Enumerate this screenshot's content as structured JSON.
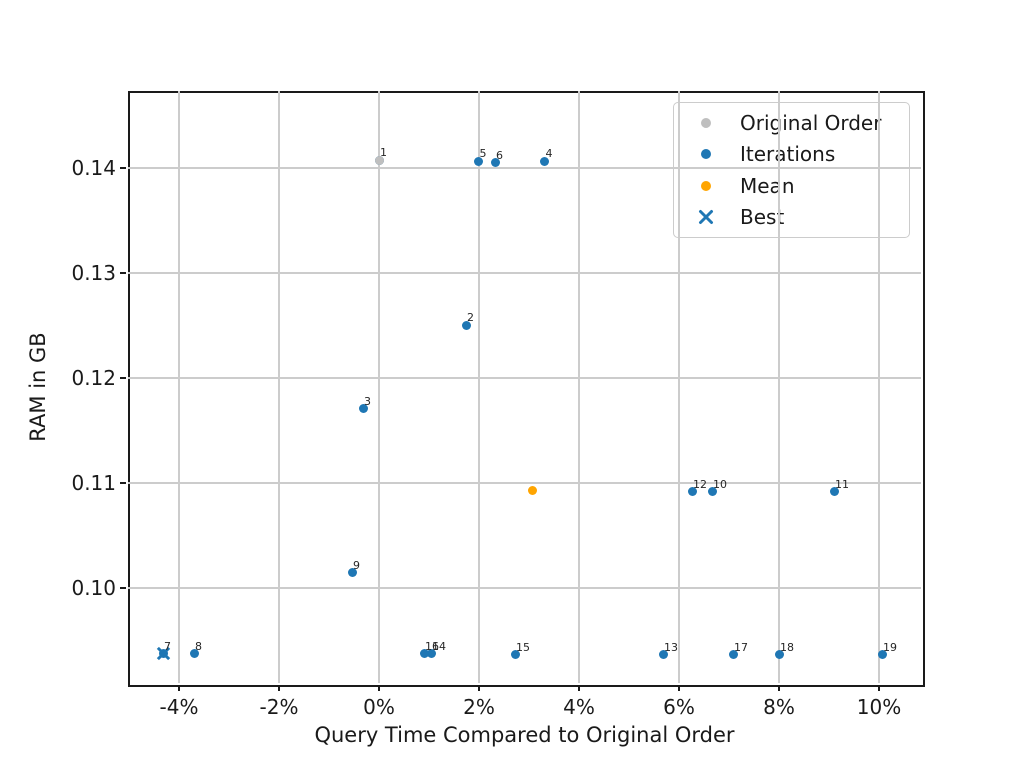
{
  "figure": {
    "title": "",
    "background_color": "#ffffff",
    "spine_color": "#1a1a1a",
    "grid_color": "#cccccc"
  },
  "chart_data": {
    "type": "scatter",
    "title": "",
    "xlabel": "Query Time Compared to Original Order",
    "ylabel": "RAM in GB",
    "xlim": [
      -5.02,
      10.84
    ],
    "ylim": [
      0.091,
      0.1473
    ],
    "grid": true,
    "legend_position": "upper right",
    "x_ticks": [
      {
        "value": -4,
        "label": "-4%"
      },
      {
        "value": -2,
        "label": "-2%"
      },
      {
        "value": 0,
        "label": "0%"
      },
      {
        "value": 2,
        "label": "2%"
      },
      {
        "value": 4,
        "label": "4%"
      },
      {
        "value": 6,
        "label": "6%"
      },
      {
        "value": 8,
        "label": "8%"
      },
      {
        "value": 10,
        "label": "10%"
      }
    ],
    "y_ticks": [
      {
        "value": 0.1,
        "label": "0.10"
      },
      {
        "value": 0.11,
        "label": "0.11"
      },
      {
        "value": 0.12,
        "label": "0.12"
      },
      {
        "value": 0.13,
        "label": "0.13"
      },
      {
        "value": 0.14,
        "label": "0.14"
      }
    ],
    "series": [
      {
        "name": "Iterations",
        "marker": "circle",
        "color": "#1f77b4",
        "marker_size": 9,
        "points": [
          {
            "label": "1",
            "x": 0.0,
            "y": 0.1407
          },
          {
            "label": "2",
            "x": 1.74,
            "y": 0.125
          },
          {
            "label": "3",
            "x": -0.32,
            "y": 0.1171
          },
          {
            "label": "4",
            "x": 3.31,
            "y": 0.1406
          },
          {
            "label": "5",
            "x": 1.99,
            "y": 0.1406
          },
          {
            "label": "6",
            "x": 2.32,
            "y": 0.1405
          },
          {
            "label": "7",
            "x": -4.32,
            "y": 0.0938
          },
          {
            "label": "8",
            "x": -3.7,
            "y": 0.0938
          },
          {
            "label": "9",
            "x": -0.54,
            "y": 0.1015
          },
          {
            "label": "10",
            "x": 6.66,
            "y": 0.1092
          },
          {
            "label": "11",
            "x": 9.1,
            "y": 0.1092
          },
          {
            "label": "12",
            "x": 6.26,
            "y": 0.1092
          },
          {
            "label": "13",
            "x": 5.68,
            "y": 0.0937
          },
          {
            "label": "14",
            "x": 1.04,
            "y": 0.0938
          },
          {
            "label": "15",
            "x": 2.72,
            "y": 0.0937
          },
          {
            "label": "16",
            "x": 0.9,
            "y": 0.0938
          },
          {
            "label": "17",
            "x": 7.08,
            "y": 0.0937
          },
          {
            "label": "18",
            "x": 8.0,
            "y": 0.0937
          },
          {
            "label": "19",
            "x": 10.06,
            "y": 0.0937
          }
        ]
      },
      {
        "name": "Original Order",
        "marker": "circle",
        "color": "#bfbfbf",
        "marker_size": 9,
        "points": [
          {
            "label": "",
            "x": 0.0,
            "y": 0.1407
          }
        ]
      },
      {
        "name": "Mean",
        "marker": "circle",
        "color": "#ffa500",
        "marker_size": 9,
        "points": [
          {
            "label": "",
            "x": 3.06,
            "y": 0.1093
          }
        ]
      },
      {
        "name": "Best",
        "marker": "x",
        "color": "#1f77b4",
        "marker_size": 15,
        "points": [
          {
            "label": "",
            "x": -4.32,
            "y": 0.0938
          }
        ]
      }
    ]
  },
  "legend": {
    "entries": [
      {
        "label": "Original Order",
        "marker": "circle",
        "color": "#bfbfbf"
      },
      {
        "label": "Iterations",
        "marker": "circle",
        "color": "#1f77b4"
      },
      {
        "label": "Mean",
        "marker": "circle",
        "color": "#ffa500"
      },
      {
        "label": "Best",
        "marker": "x",
        "color": "#1f77b4"
      }
    ]
  }
}
